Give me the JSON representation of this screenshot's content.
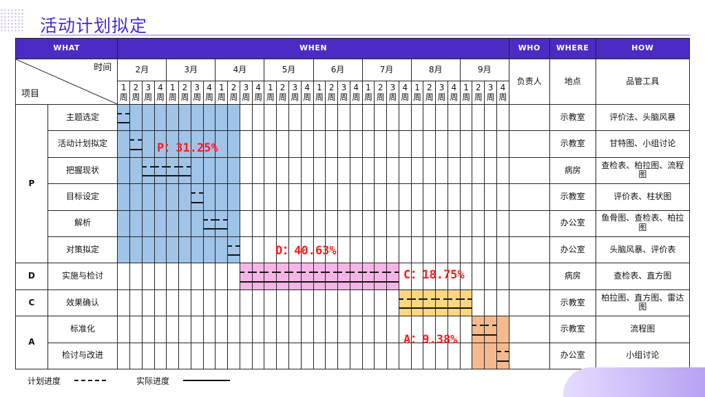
{
  "title": "活动计划拟定",
  "headers": {
    "what": "WHAT",
    "when": "WHEN",
    "who": "WHO",
    "where": "WHERE",
    "how": "HOW"
  },
  "corner": {
    "top": "时间",
    "bottom": "项目"
  },
  "columns": {
    "owner": "负责人",
    "place": "地点",
    "tool": "品管工具"
  },
  "months": [
    "2月",
    "3月",
    "4月",
    "5月",
    "6月",
    "7月",
    "8月",
    "9月"
  ],
  "week_labels": [
    "1",
    "2",
    "3",
    "4"
  ],
  "week_char": "周",
  "phases": [
    {
      "label": "P",
      "rows": [
        0,
        5
      ]
    },
    {
      "label": "D",
      "rows": [
        6,
        6
      ]
    },
    {
      "label": "C",
      "rows": [
        7,
        7
      ]
    },
    {
      "label": "A",
      "rows": [
        8,
        9
      ]
    }
  ],
  "rows": [
    {
      "item": "主题选定",
      "place": "示教室",
      "tool": "评价法、头脑风暴",
      "plan": [
        0,
        0
      ],
      "actual": [
        0,
        0
      ]
    },
    {
      "item": "活动计划拟定",
      "place": "示教室",
      "tool": "甘特图、小组讨论",
      "plan": [
        1,
        1
      ],
      "actual": [
        1,
        1
      ]
    },
    {
      "item": "把握现状",
      "place": "病房",
      "tool": "查检表、柏拉图、流程图",
      "plan": [
        2,
        5
      ],
      "actual": [
        2,
        5
      ]
    },
    {
      "item": "目标设定",
      "place": "示教室",
      "tool": "评价表、柱状图",
      "plan": [
        6,
        6
      ],
      "actual": [
        6,
        6
      ]
    },
    {
      "item": "解析",
      "place": "办公室",
      "tool": "鱼骨图、查检表、柏拉图",
      "plan": [
        7,
        8
      ],
      "actual": [
        7,
        8
      ]
    },
    {
      "item": "对策拟定",
      "place": "办公室",
      "tool": "头脑风暴、评价表",
      "plan": [
        9,
        9
      ],
      "actual": [
        9,
        9
      ]
    },
    {
      "item": "实施与检讨",
      "place": "病房",
      "tool": "查检表、直方图",
      "plan": [
        10,
        22
      ],
      "actual": [
        10,
        22
      ]
    },
    {
      "item": "效果确认",
      "place": "示教室",
      "tool": "柏拉图、直方图、雷达图",
      "plan": [
        23,
        28
      ],
      "actual": [
        23,
        28
      ]
    },
    {
      "item": "标准化",
      "place": "示教室",
      "tool": "流程图",
      "plan": [
        29,
        30
      ],
      "actual": [
        29,
        30
      ]
    },
    {
      "item": "检讨与改进",
      "place": "办公室",
      "tool": "小组讨论",
      "plan": [
        31,
        31
      ],
      "actual": [
        31,
        31
      ]
    }
  ],
  "highlights": [
    {
      "rows": [
        0,
        5
      ],
      "cols": [
        0,
        9
      ],
      "color": "#a0c3e8"
    },
    {
      "rows": [
        6,
        6
      ],
      "cols": [
        10,
        22
      ],
      "color": "#f7b5e7"
    },
    {
      "rows": [
        7,
        7
      ],
      "cols": [
        23,
        28
      ],
      "color": "#fad780"
    },
    {
      "rows": [
        8,
        9
      ],
      "cols": [
        29,
        31
      ],
      "color": "#f5b98e"
    }
  ],
  "percentages": {
    "p": "P：31.25%",
    "d": "D：40.63%",
    "c": "C：18.75%",
    "a": "A：9.38%"
  },
  "legend": {
    "plan": "计划进度",
    "actual": "实际进度"
  }
}
